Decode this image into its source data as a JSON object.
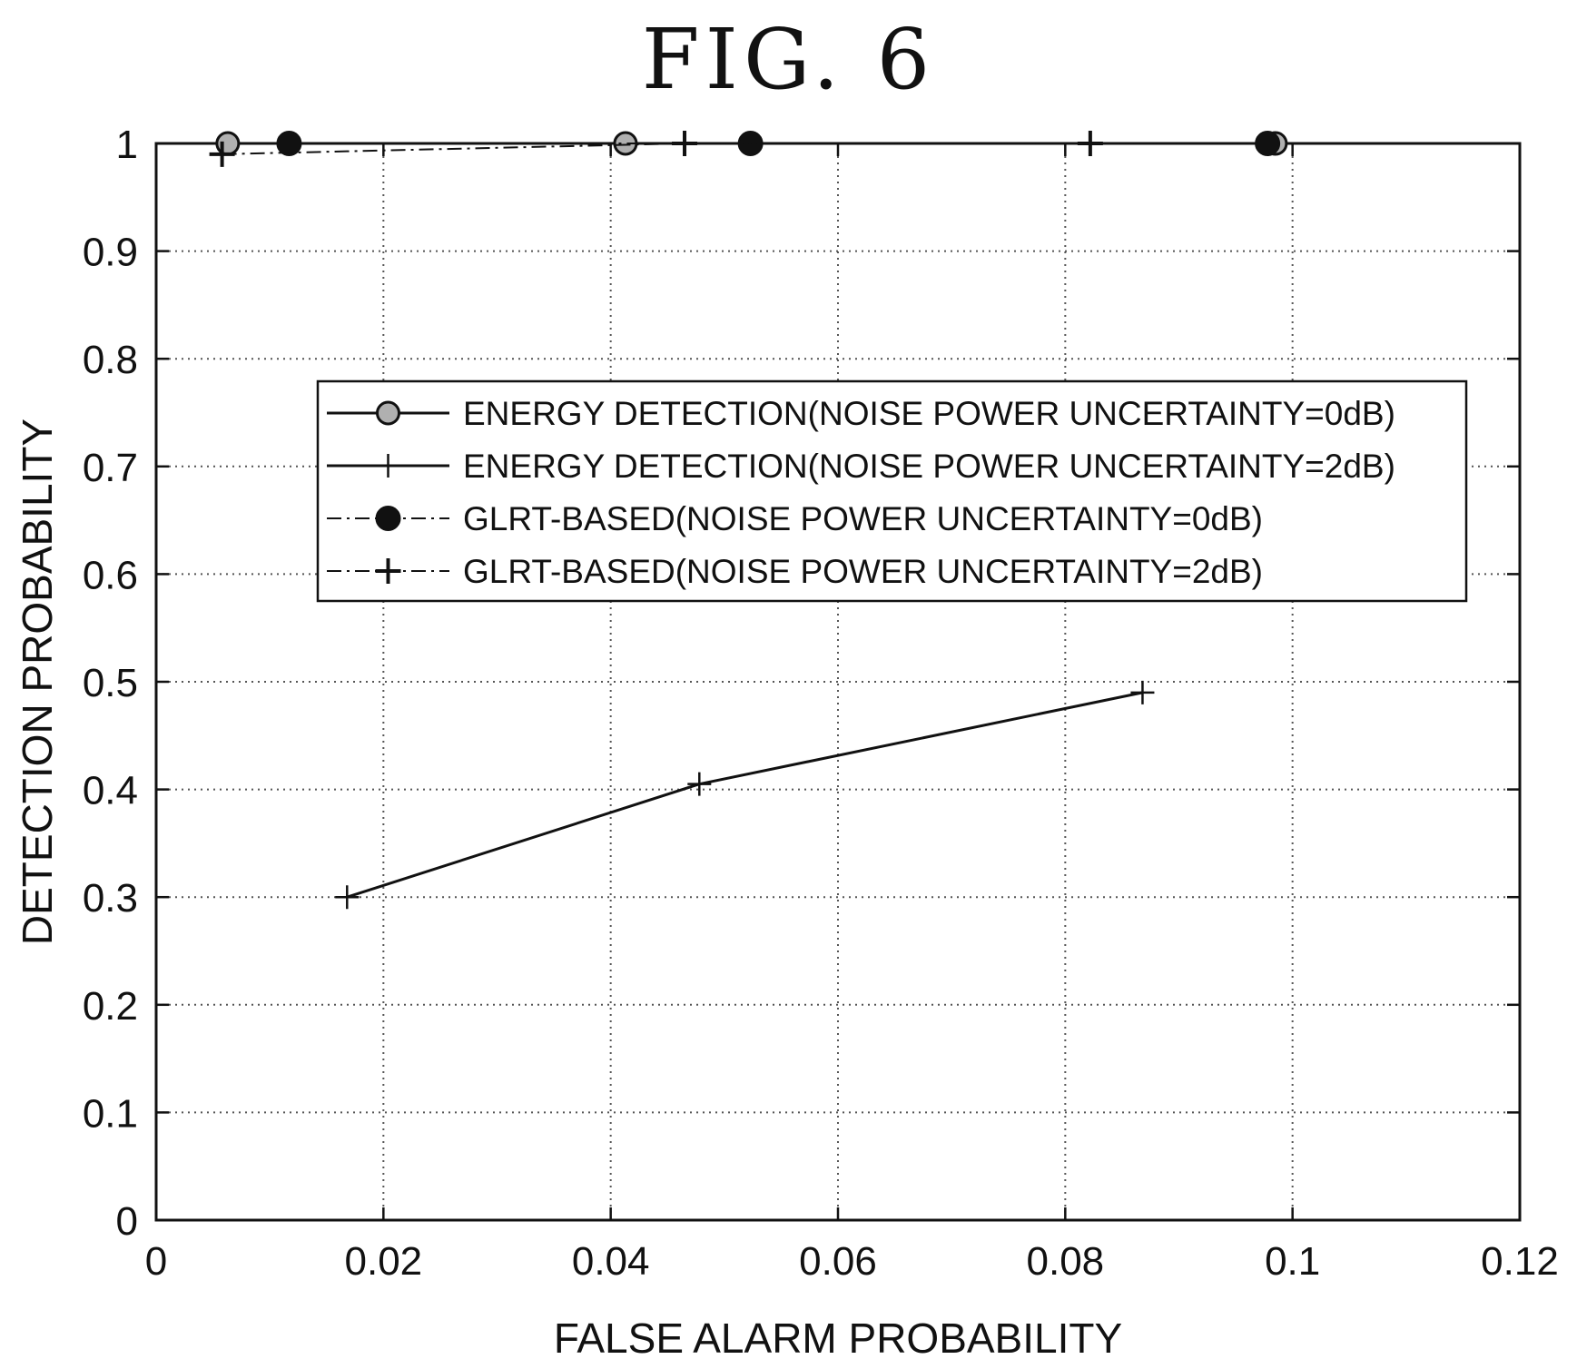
{
  "figure": {
    "title": "FIG. 6"
  },
  "chart_data": {
    "type": "line",
    "title": "FIG. 6",
    "xlabel": "FALSE ALARM PROBABILITY",
    "ylabel": "DETECTION PROBABILITY",
    "xlim": [
      0,
      0.12
    ],
    "ylim": [
      0,
      1
    ],
    "xticks": [
      0,
      0.02,
      0.04,
      0.06,
      0.08,
      0.1,
      0.12
    ],
    "xtick_labels": [
      "0",
      "0.02",
      "0.04",
      "0.06",
      "0.08",
      "0.1",
      "0.12"
    ],
    "yticks": [
      0,
      0.1,
      0.2,
      0.3,
      0.4,
      0.5,
      0.6,
      0.7,
      0.8,
      0.9,
      1
    ],
    "ytick_labels": [
      "0",
      "0.1",
      "0.2",
      "0.3",
      "0.4",
      "0.5",
      "0.6",
      "0.7",
      "0.8",
      "0.9",
      "1"
    ],
    "grid": true,
    "legend_position": "upper-right",
    "series": [
      {
        "name": "ENERGY DETECTION(NOISE POWER UNCERTAINTY=0dB)",
        "marker": "circle-gray",
        "line": "solid",
        "x": [
          0.0063,
          0.0413,
          0.0985
        ],
        "y": [
          1.0,
          1.0,
          1.0
        ]
      },
      {
        "name": "ENERGY DETECTION(NOISE POWER UNCERTAINTY=2dB)",
        "marker": "plus-thin",
        "line": "solid",
        "x": [
          0.0168,
          0.0478,
          0.0868
        ],
        "y": [
          0.3,
          0.405,
          0.49
        ]
      },
      {
        "name": "GLRT-BASED(NOISE POWER UNCERTAINTY=0dB)",
        "marker": "circle-black",
        "line": "dashdot",
        "x": [
          0.0117,
          0.0523,
          0.0978
        ],
        "y": [
          1.0,
          1.0,
          1.0
        ]
      },
      {
        "name": "GLRT-BASED(NOISE POWER UNCERTAINTY=2dB)",
        "marker": "plus-bold",
        "line": "dashdot",
        "x": [
          0.0058,
          0.0465,
          0.0822
        ],
        "y": [
          0.99,
          1.0,
          1.0
        ]
      }
    ]
  }
}
